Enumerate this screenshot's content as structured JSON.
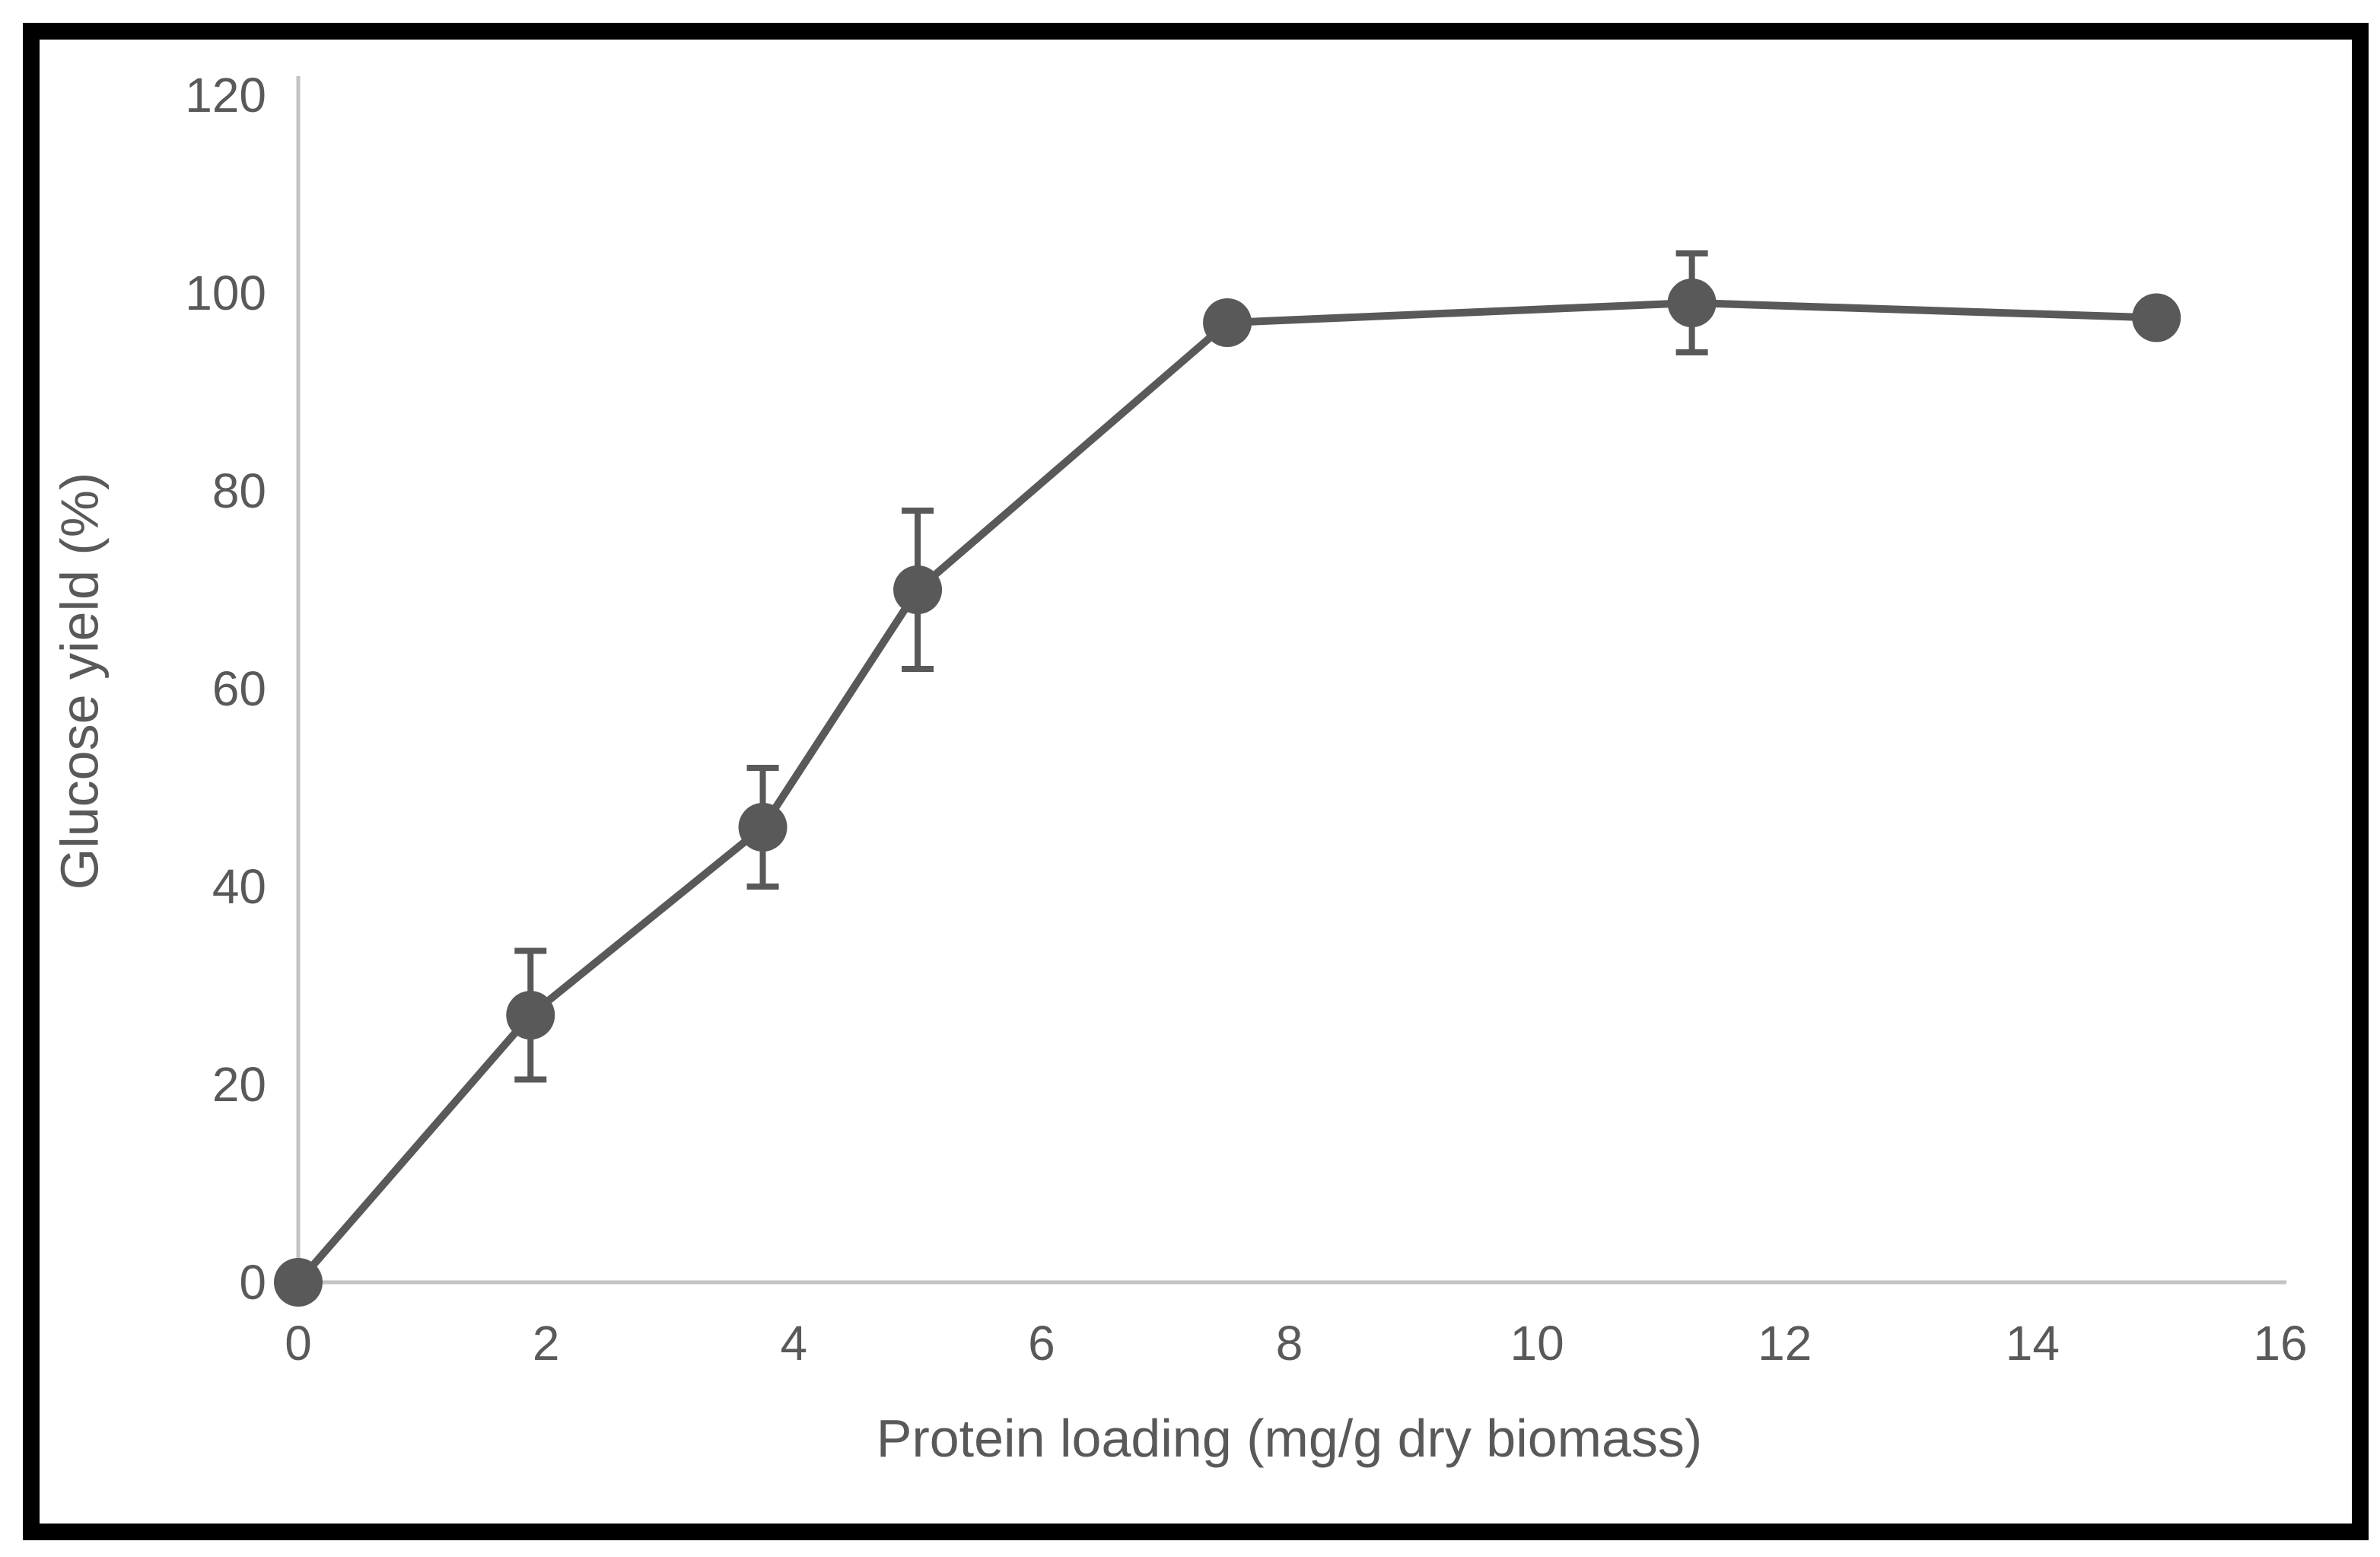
{
  "figure": {
    "background": "#ffffff",
    "frame_color": "#000000"
  },
  "chart_data": {
    "type": "line",
    "series": [
      {
        "name": "Glucose yield",
        "x": [
          0,
          1.875,
          3.75,
          5,
          7.5,
          11.25,
          15
        ],
        "y": [
          0,
          27,
          46,
          70,
          97,
          99,
          97.5
        ],
        "y_err": [
          0,
          6.5,
          6,
          8,
          0,
          5,
          0
        ],
        "color": "#595959",
        "marker": "circle"
      }
    ],
    "title": "",
    "xlabel": "Protein loading (mg/g dry biomass)",
    "ylabel": "Glucose yield (%)",
    "xlim": [
      0,
      16
    ],
    "ylim": [
      0,
      120
    ],
    "x_ticks": [
      "0",
      "2",
      "4",
      "6",
      "8",
      "10",
      "12",
      "14",
      "16"
    ],
    "y_ticks": [
      "0",
      "20",
      "40",
      "60",
      "80",
      "100",
      "120"
    ],
    "grid": false,
    "legend": "none",
    "axis_line_color": "#c3c3c3",
    "tick_label_color": "#595959",
    "error_bar_color": "#595959"
  }
}
